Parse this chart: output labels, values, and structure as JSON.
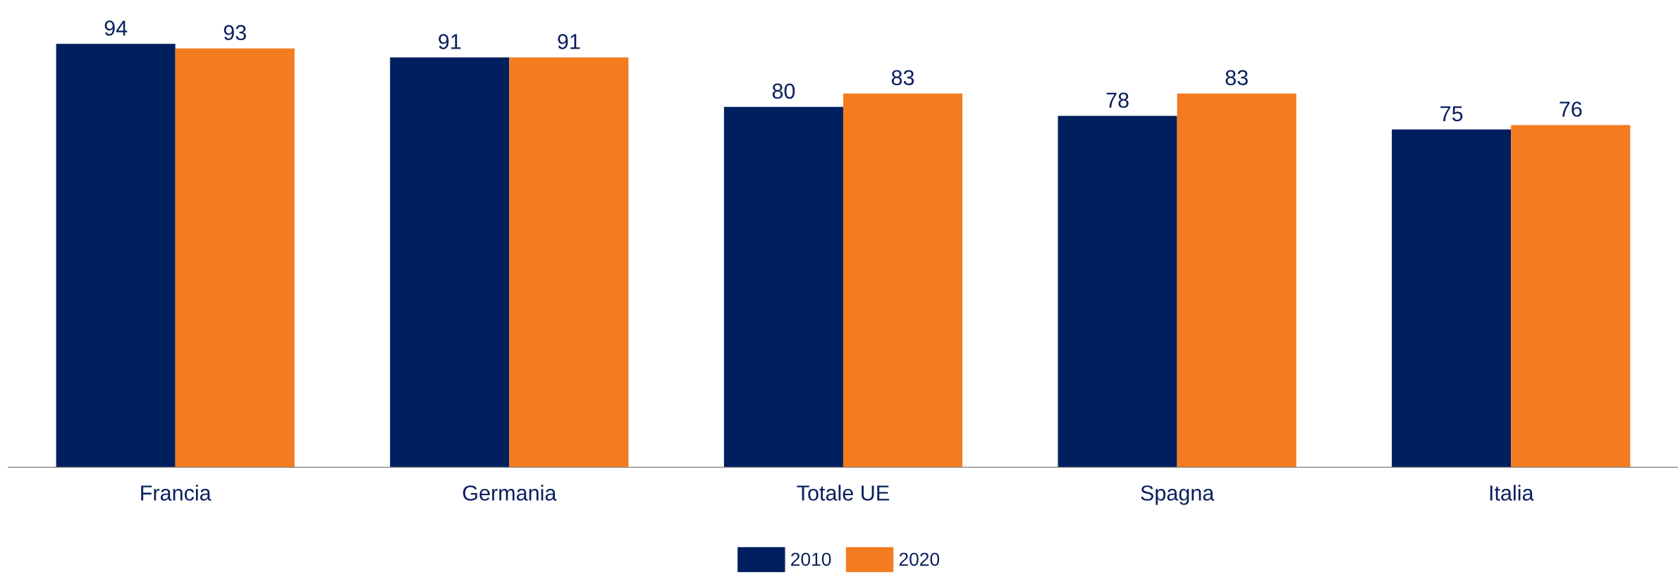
{
  "chart_data": {
    "type": "bar",
    "categories": [
      "Francia",
      "Germania",
      "Totale UE",
      "Spagna",
      "Italia"
    ],
    "series": [
      {
        "name": "2010",
        "color": "#001f5f",
        "values": [
          94,
          91,
          80,
          78,
          75
        ]
      },
      {
        "name": "2020",
        "color": "#f47c20",
        "values": [
          93,
          91,
          83,
          83,
          76
        ]
      }
    ],
    "data_labels": true,
    "legend": "bottom",
    "grid": false
  }
}
